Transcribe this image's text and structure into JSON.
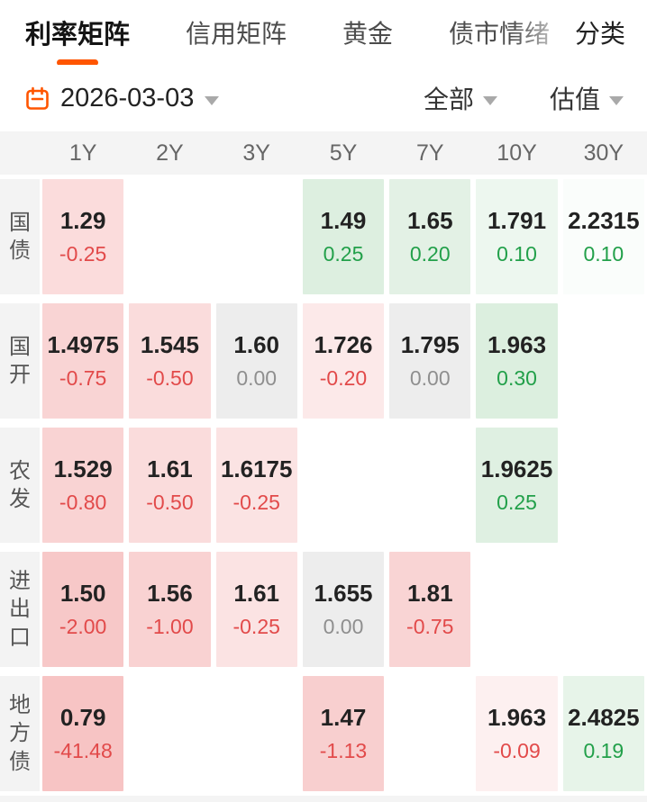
{
  "tabs": {
    "items": [
      {
        "name": "tab-rate-matrix",
        "label": "利率矩阵",
        "active": true
      },
      {
        "name": "tab-credit-matrix",
        "label": "信用矩阵",
        "active": false
      },
      {
        "name": "tab-gold",
        "label": "黄金",
        "active": false
      },
      {
        "name": "tab-bond-sentiment",
        "label": "债市情绪",
        "active": false
      }
    ],
    "more_label": "分类"
  },
  "filters": {
    "date": "2026-03-03",
    "scope": "全部",
    "mode": "估值"
  },
  "colors": {
    "accent": "#ff5500",
    "change_down": "#e24a4a",
    "change_up": "#22a04a",
    "change_flat": "#8f8f8f"
  },
  "matrix": {
    "columns": [
      "1Y",
      "2Y",
      "3Y",
      "5Y",
      "7Y",
      "10Y",
      "30Y"
    ],
    "rows": [
      {
        "label": "国债",
        "cells": [
          {
            "value": "1.29",
            "change": "-0.25",
            "dir": "down",
            "bg": "#fbdcdc"
          },
          null,
          null,
          {
            "value": "1.49",
            "change": "0.25",
            "dir": "up",
            "bg": "#ddefe0"
          },
          {
            "value": "1.65",
            "change": "0.20",
            "dir": "up",
            "bg": "#e3f1e5"
          },
          {
            "value": "1.791",
            "change": "0.10",
            "dir": "up",
            "bg": "#edf7ef"
          },
          {
            "value": "2.2315",
            "change": "0.10",
            "dir": "up",
            "bg": "#fafdfb"
          }
        ]
      },
      {
        "label": "国开",
        "cells": [
          {
            "value": "1.4975",
            "change": "-0.75",
            "dir": "down",
            "bg": "#f9d4d4"
          },
          {
            "value": "1.545",
            "change": "-0.50",
            "dir": "down",
            "bg": "#fadcdc"
          },
          {
            "value": "1.60",
            "change": "0.00",
            "dir": "flat",
            "bg": "#ededed"
          },
          {
            "value": "1.726",
            "change": "-0.20",
            "dir": "down",
            "bg": "#fce9e9"
          },
          {
            "value": "1.795",
            "change": "0.00",
            "dir": "flat",
            "bg": "#ededed"
          },
          {
            "value": "1.963",
            "change": "0.30",
            "dir": "up",
            "bg": "#dcefdf"
          },
          null
        ]
      },
      {
        "label": "农发",
        "cells": [
          {
            "value": "1.529",
            "change": "-0.80",
            "dir": "down",
            "bg": "#f9d3d3"
          },
          {
            "value": "1.61",
            "change": "-0.50",
            "dir": "down",
            "bg": "#fadcdc"
          },
          {
            "value": "1.6175",
            "change": "-0.25",
            "dir": "down",
            "bg": "#fbe3e3"
          },
          null,
          null,
          {
            "value": "1.9625",
            "change": "0.25",
            "dir": "up",
            "bg": "#dff0e2"
          },
          null
        ]
      },
      {
        "label": "进出口",
        "cells": [
          {
            "value": "1.50",
            "change": "-2.00",
            "dir": "down",
            "bg": "#f7c8c8"
          },
          {
            "value": "1.56",
            "change": "-1.00",
            "dir": "down",
            "bg": "#f9d2d2"
          },
          {
            "value": "1.61",
            "change": "-0.25",
            "dir": "down",
            "bg": "#fbe3e3"
          },
          {
            "value": "1.655",
            "change": "0.00",
            "dir": "flat",
            "bg": "#ededed"
          },
          {
            "value": "1.81",
            "change": "-0.75",
            "dir": "down",
            "bg": "#f9d4d4"
          },
          null,
          null
        ]
      },
      {
        "label": "地方债",
        "cells": [
          {
            "value": "0.79",
            "change": "-41.48",
            "dir": "down",
            "bg": "#f7c4c4"
          },
          null,
          null,
          {
            "value": "1.47",
            "change": "-1.13",
            "dir": "down",
            "bg": "#f8cfcf"
          },
          null,
          {
            "value": "1.963",
            "change": "-0.09",
            "dir": "down",
            "bg": "#fdf0f0"
          },
          {
            "value": "2.4825",
            "change": "0.19",
            "dir": "up",
            "bg": "#e7f4e9"
          }
        ]
      }
    ]
  }
}
